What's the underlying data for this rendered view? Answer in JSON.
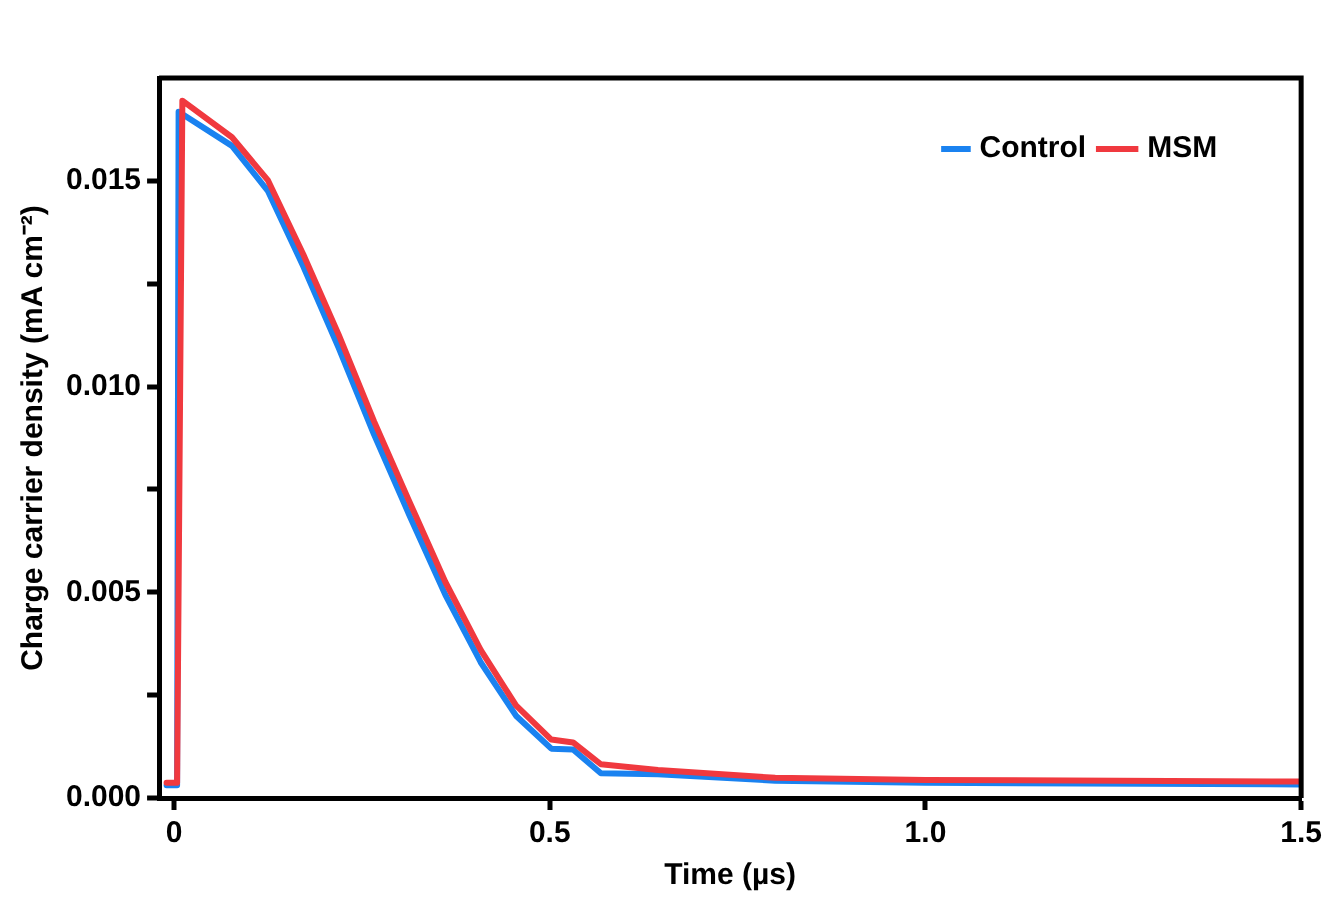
{
  "chart_data": {
    "type": "line",
    "xlabel": "Time (µs)",
    "ylabel": "Charge carrier density (mA cm⁻²)",
    "xlim": [
      -0.02,
      1.5
    ],
    "xticks": [
      0,
      0.5,
      {
        "value": 1,
        "label": "1.0"
      },
      1.5
    ],
    "ylim": [
      0,
      0.0175
    ],
    "yticks": [
      {
        "value": 0,
        "label": "0.000"
      },
      {
        "value": 0.0025,
        "label": null
      },
      {
        "value": 0.005,
        "label": "0.005"
      },
      {
        "value": 0.0075,
        "label": null
      },
      {
        "value": 0.01,
        "label": "0.010"
      },
      {
        "value": 0.0125,
        "label": null
      },
      {
        "value": 0.015,
        "label": "0.015"
      }
    ],
    "grid": false,
    "legend": "top right",
    "marker": "none",
    "line_style": "solid",
    "series": [
      {
        "name": "Control",
        "color": "#1a82f0",
        "x": [
          -0.01,
          0.004,
          0.006,
          0.077,
          0.125,
          0.172,
          0.219,
          0.266,
          0.313,
          0.361,
          0.408,
          0.455,
          0.502,
          0.531,
          0.568,
          0.644,
          0.8,
          1.0,
          1.5
        ],
        "values": [
          0.00031,
          0.00031,
          0.01668,
          0.01585,
          0.01475,
          0.01292,
          0.01094,
          0.00884,
          0.00688,
          0.00494,
          0.0033,
          0.002,
          0.0012,
          0.00118,
          0.0006,
          0.00058,
          0.00042,
          0.00037,
          0.00033
        ]
      },
      {
        "name": "MSM",
        "color": "#f0393f",
        "x": [
          -0.01,
          0.004,
          0.011,
          0.077,
          0.125,
          0.172,
          0.219,
          0.266,
          0.313,
          0.361,
          0.408,
          0.455,
          0.502,
          0.531,
          0.568,
          0.644,
          0.8,
          1.0,
          1.5
        ],
        "values": [
          0.00037,
          0.00037,
          0.01695,
          0.01606,
          0.01501,
          0.01321,
          0.01126,
          0.00916,
          0.00721,
          0.00525,
          0.0036,
          0.00225,
          0.00142,
          0.00135,
          0.00082,
          0.00068,
          0.00049,
          0.00044,
          0.0004
        ]
      }
    ]
  }
}
